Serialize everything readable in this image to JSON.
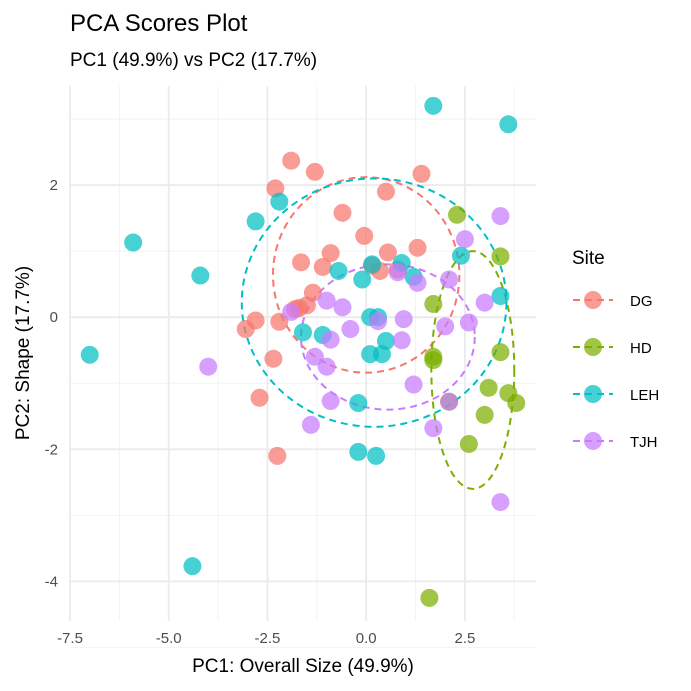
{
  "chart_data": {
    "type": "scatter",
    "title": "PCA Scores Plot",
    "subtitle": "PC1 (49.9%) vs PC2 (17.7%)",
    "xlabel": "PC1: Overall Size (49.9%)",
    "ylabel": "PC2: Shape (17.7%)",
    "xlim": [
      -7.5,
      4.3
    ],
    "ylim": [
      -4.6,
      3.5
    ],
    "x_ticks": [
      -7.5,
      -5.0,
      -2.5,
      0.0,
      2.5
    ],
    "x_tick_labels": [
      "-7.5",
      "-5.0",
      "-2.5",
      "0.0",
      "2.5"
    ],
    "y_ticks": [
      -4,
      -2,
      0,
      2
    ],
    "y_tick_labels": [
      "-4",
      "-2",
      "0",
      "2"
    ],
    "grid": true,
    "legend": {
      "title": "Site",
      "position": "right"
    },
    "ellipses": "dashed 95% confidence ellipse per site",
    "series": [
      {
        "name": "DG",
        "color": "#F8766D",
        "points": [
          [
            -1.9,
            2.37
          ],
          [
            -1.3,
            2.2
          ],
          [
            -2.3,
            1.95
          ],
          [
            -0.6,
            1.58
          ],
          [
            -0.05,
            1.23
          ],
          [
            0.5,
            1.9
          ],
          [
            1.4,
            2.17
          ],
          [
            1.3,
            1.05
          ],
          [
            0.55,
            0.98
          ],
          [
            -0.9,
            0.97
          ],
          [
            -1.65,
            0.83
          ],
          [
            -1.1,
            0.76
          ],
          [
            0.15,
            0.78
          ],
          [
            0.35,
            0.7
          ],
          [
            0.8,
            0.72
          ],
          [
            -1.35,
            0.37
          ],
          [
            -1.5,
            0.18
          ],
          [
            -1.7,
            0.14
          ],
          [
            -1.8,
            0.12
          ],
          [
            -2.8,
            -0.05
          ],
          [
            -3.05,
            -0.18
          ],
          [
            -2.2,
            -0.07
          ],
          [
            -2.35,
            -0.63
          ],
          [
            -2.7,
            -1.22
          ],
          [
            -2.25,
            -2.1
          ]
        ],
        "ellipse": {
          "cx": 0.0,
          "cy": 0.64,
          "rx": 2.36,
          "ry": 1.48
        }
      },
      {
        "name": "HD",
        "color": "#7CAE00",
        "points": [
          [
            2.3,
            1.55
          ],
          [
            3.4,
            0.92
          ],
          [
            1.7,
            0.2
          ],
          [
            1.7,
            -0.6
          ],
          [
            1.7,
            -0.65
          ],
          [
            3.4,
            -0.53
          ],
          [
            3.1,
            -1.07
          ],
          [
            3.6,
            -1.15
          ],
          [
            3.8,
            -1.3
          ],
          [
            2.1,
            -1.28
          ],
          [
            3.0,
            -1.48
          ],
          [
            2.6,
            -1.92
          ],
          [
            1.6,
            -4.25
          ]
        ],
        "ellipse": {
          "cx": 2.7,
          "cy": -0.8,
          "rx": 1.05,
          "ry": 1.8
        }
      },
      {
        "name": "LEH",
        "color": "#00BFC4",
        "points": [
          [
            1.7,
            3.2
          ],
          [
            3.6,
            2.92
          ],
          [
            -2.2,
            1.75
          ],
          [
            -2.8,
            1.45
          ],
          [
            -5.9,
            1.13
          ],
          [
            -4.2,
            0.63
          ],
          [
            0.15,
            0.8
          ],
          [
            0.9,
            0.82
          ],
          [
            -0.7,
            0.7
          ],
          [
            1.2,
            0.61
          ],
          [
            2.4,
            0.93
          ],
          [
            -0.1,
            0.57
          ],
          [
            3.4,
            0.32
          ],
          [
            0.1,
            0.0
          ],
          [
            0.3,
            0.0
          ],
          [
            -1.6,
            -0.23
          ],
          [
            -1.1,
            -0.27
          ],
          [
            0.5,
            -0.36
          ],
          [
            0.1,
            -0.56
          ],
          [
            0.4,
            -0.56
          ],
          [
            -7.0,
            -0.57
          ],
          [
            -0.2,
            -1.3
          ],
          [
            -0.2,
            -2.04
          ],
          [
            0.25,
            -2.1
          ],
          [
            -4.4,
            -3.77
          ]
        ],
        "ellipse": {
          "cx": 0.2,
          "cy": 0.22,
          "rx": 3.35,
          "ry": 1.88
        }
      },
      {
        "name": "TJH",
        "color": "#C77CFF",
        "points": [
          [
            3.4,
            1.53
          ],
          [
            2.5,
            1.18
          ],
          [
            2.1,
            0.57
          ],
          [
            1.3,
            0.52
          ],
          [
            0.8,
            0.68
          ],
          [
            -1.0,
            0.25
          ],
          [
            -0.6,
            0.15
          ],
          [
            -1.9,
            0.08
          ],
          [
            3.0,
            0.22
          ],
          [
            2.0,
            -0.14
          ],
          [
            2.6,
            -0.08
          ],
          [
            0.95,
            -0.03
          ],
          [
            0.3,
            -0.06
          ],
          [
            -0.4,
            -0.18
          ],
          [
            -0.9,
            -0.34
          ],
          [
            -1.3,
            -0.6
          ],
          [
            -1.0,
            -0.75
          ],
          [
            0.9,
            -0.35
          ],
          [
            -4.0,
            -0.75
          ],
          [
            1.2,
            -1.02
          ],
          [
            -0.9,
            -1.27
          ],
          [
            2.1,
            -1.28
          ],
          [
            -1.4,
            -1.63
          ],
          [
            1.7,
            -1.68
          ],
          [
            3.4,
            -2.8
          ]
        ],
        "ellipse": {
          "cx": 0.55,
          "cy": -0.3,
          "rx": 2.2,
          "ry": 1.1
        }
      }
    ]
  }
}
